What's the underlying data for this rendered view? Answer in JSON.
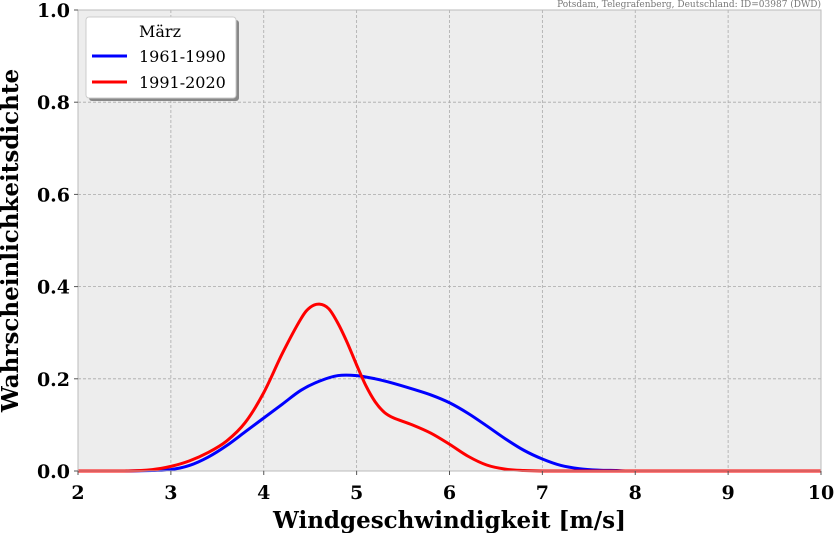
{
  "chart_data": {
    "type": "line",
    "title": "",
    "source_note": "Potsdam, Telegrafenberg, Deutschland: ID=03987 (DWD)",
    "xlabel": "Windgeschwindigkeit [m/s]",
    "ylabel": "Wahrscheinlichkeitsdichte",
    "xlim": [
      2,
      10
    ],
    "ylim": [
      0,
      1
    ],
    "xticks": [
      "2",
      "3",
      "4",
      "5",
      "6",
      "7",
      "8",
      "9",
      "10"
    ],
    "yticks": [
      "0.0",
      "0.2",
      "0.4",
      "0.6",
      "0.8",
      "1.0"
    ],
    "grid": true,
    "legend": {
      "title": "März",
      "position": "top-left"
    },
    "series": [
      {
        "name": "1961-1990",
        "color": "#0000ff",
        "x": [
          2.0,
          2.5,
          2.8,
          3.0,
          3.2,
          3.4,
          3.6,
          3.8,
          4.0,
          4.2,
          4.4,
          4.6,
          4.8,
          5.0,
          5.2,
          5.4,
          5.6,
          5.8,
          6.0,
          6.2,
          6.4,
          6.6,
          6.8,
          7.0,
          7.2,
          7.4,
          7.6,
          7.8,
          8.0,
          9.0,
          10.0
        ],
        "y": [
          0.0,
          0.0,
          0.001,
          0.003,
          0.012,
          0.03,
          0.055,
          0.085,
          0.115,
          0.145,
          0.175,
          0.195,
          0.207,
          0.207,
          0.2,
          0.19,
          0.178,
          0.165,
          0.148,
          0.125,
          0.098,
          0.07,
          0.045,
          0.026,
          0.012,
          0.005,
          0.002,
          0.001,
          0.0,
          0.0,
          0.0
        ]
      },
      {
        "name": "1991-2020",
        "color": "#ff0000",
        "x": [
          2.0,
          2.5,
          2.8,
          3.0,
          3.2,
          3.4,
          3.6,
          3.8,
          4.0,
          4.2,
          4.4,
          4.5,
          4.6,
          4.7,
          4.8,
          4.9,
          5.0,
          5.1,
          5.2,
          5.3,
          5.4,
          5.6,
          5.8,
          6.0,
          6.2,
          6.4,
          6.6,
          6.8,
          7.0,
          7.5,
          8.0,
          10.0
        ],
        "y": [
          0.0,
          0.0,
          0.003,
          0.01,
          0.022,
          0.04,
          0.065,
          0.105,
          0.17,
          0.255,
          0.33,
          0.355,
          0.362,
          0.352,
          0.32,
          0.278,
          0.23,
          0.185,
          0.15,
          0.127,
          0.115,
          0.1,
          0.082,
          0.058,
          0.032,
          0.013,
          0.004,
          0.001,
          0.0,
          0.0,
          0.0,
          0.0
        ]
      }
    ]
  }
}
